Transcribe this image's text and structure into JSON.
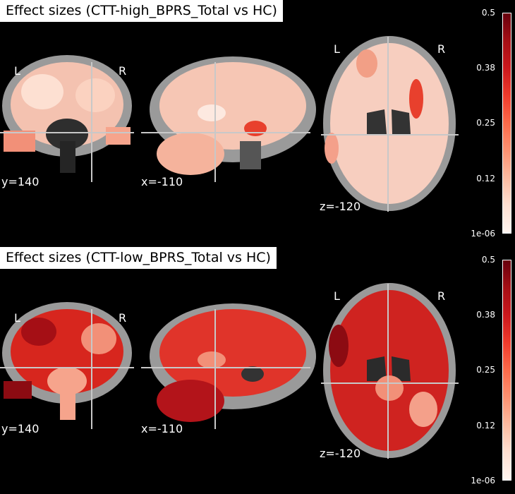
{
  "panels": [
    {
      "title": "Effect sizes (CTT-high_BPRS_Total vs HC)",
      "coronal_coord": "y=140",
      "sagittal_coord": "x=-110",
      "axial_coord": "z=-120",
      "left_label": "L",
      "right_label": "R",
      "colorbar_ticks": [
        "0.5",
        "0.38",
        "0.25",
        "0.12",
        "1e-06"
      ]
    },
    {
      "title": "Effect sizes (CTT-low_BPRS_Total vs HC)",
      "coronal_coord": "y=140",
      "sagittal_coord": "x=-110",
      "axial_coord": "z=-120",
      "left_label": "L",
      "right_label": "R",
      "colorbar_ticks": [
        "0.5",
        "0.38",
        "0.25",
        "0.12",
        "1e-06"
      ]
    }
  ],
  "colors": {
    "background": "#000000",
    "colormap": "Reds",
    "colormap_min": "#fff5f0",
    "colormap_max": "#67000d",
    "crosshair": "#c8c8c8",
    "gray_matter": "#8c8c8c"
  }
}
